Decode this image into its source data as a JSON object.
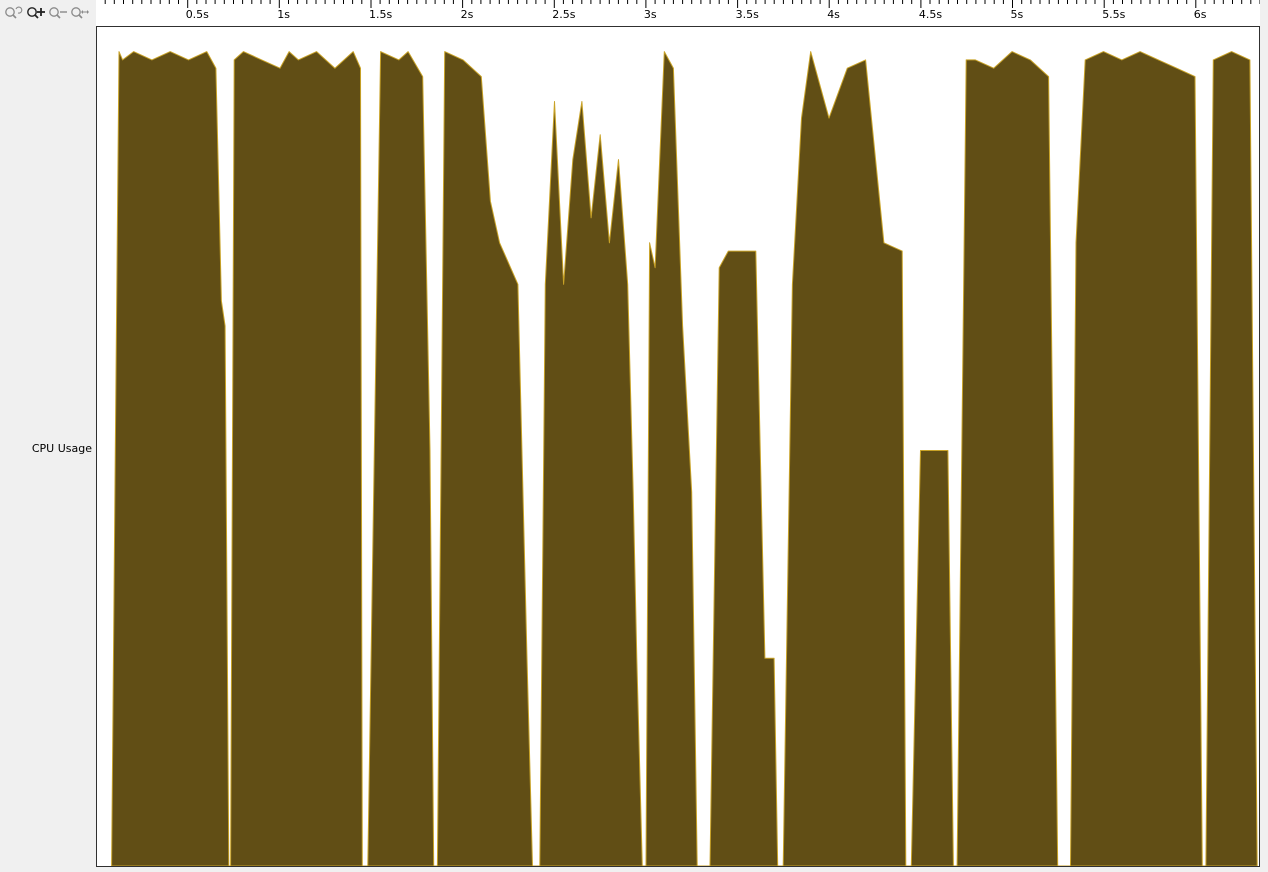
{
  "toolbar": {
    "tools": [
      {
        "name": "zoom-reset-icon"
      },
      {
        "name": "zoom-in-icon"
      },
      {
        "name": "zoom-out-icon"
      },
      {
        "name": "zoom-fit-icon"
      }
    ]
  },
  "row": {
    "label": "CPU Usage"
  },
  "colors": {
    "fill": "#614e15",
    "edge": "#c8a227",
    "background": "#ffffff",
    "chrome": "#f0f0f0"
  },
  "chart_data": {
    "type": "area",
    "title": "",
    "xlabel": "",
    "ylabel": "CPU Usage",
    "xlim": [
      0.0,
      6.35
    ],
    "ylim": [
      0,
      100
    ],
    "x_ticks": [
      0.5,
      1,
      1.5,
      2,
      2.5,
      3,
      3.5,
      4,
      4.5,
      5,
      5.5,
      6
    ],
    "x_tick_labels": [
      "0.5s",
      "1s",
      "1.5s",
      "2s",
      "2.5s",
      "3s",
      "3.5s",
      "4s",
      "4.5s",
      "5s",
      "5.5s",
      "6s"
    ],
    "series": [
      {
        "x": [
          0.08,
          0.1,
          0.12,
          0.14,
          0.2,
          0.3,
          0.4,
          0.5,
          0.6,
          0.65,
          0.68,
          0.7,
          0.72,
          0.73,
          0.75,
          0.8,
          0.9,
          1.0,
          1.05,
          1.1,
          1.2,
          1.3,
          1.4,
          1.44,
          1.45,
          1.48,
          1.55,
          1.65,
          1.7,
          1.78,
          1.82,
          1.84,
          1.86,
          1.9,
          2.0,
          2.1,
          2.15,
          2.2,
          2.3,
          2.35,
          2.38,
          2.4,
          2.42,
          2.45,
          2.5,
          2.55,
          2.6,
          2.65,
          2.7,
          2.75,
          2.8,
          2.85,
          2.9,
          2.93,
          2.95,
          2.98,
          3.0,
          3.02,
          3.05,
          3.1,
          3.15,
          3.2,
          3.25,
          3.28,
          3.3,
          3.33,
          3.35,
          3.4,
          3.45,
          3.5,
          3.6,
          3.65,
          3.7,
          3.72,
          3.75,
          3.8,
          3.85,
          3.9,
          4.0,
          4.1,
          4.2,
          4.3,
          4.4,
          4.42,
          4.45,
          4.5,
          4.55,
          4.6,
          4.65,
          4.68,
          4.7,
          4.75,
          4.8,
          4.9,
          5.0,
          5.1,
          5.2,
          5.25,
          5.28,
          5.32,
          5.35,
          5.4,
          5.5,
          5.6,
          5.7,
          5.8,
          5.9,
          6.0,
          6.04,
          6.06,
          6.1,
          6.2,
          6.3,
          6.34
        ],
        "y": [
          0,
          50,
          98,
          97,
          98,
          97,
          98,
          97,
          98,
          96,
          68,
          65,
          0,
          0,
          97,
          98,
          97,
          96,
          98,
          97,
          98,
          96,
          98,
          96,
          0,
          0,
          98,
          97,
          98,
          95,
          50,
          0,
          0,
          98,
          97,
          95,
          80,
          75,
          70,
          25,
          0,
          0,
          0,
          70,
          92,
          70,
          85,
          92,
          78,
          88,
          75,
          85,
          70,
          45,
          25,
          0,
          0,
          75,
          72,
          98,
          96,
          65,
          45,
          0,
          0,
          0,
          0,
          72,
          74,
          74,
          74,
          25,
          25,
          0,
          0,
          70,
          90,
          98,
          90,
          96,
          97,
          75,
          74,
          0,
          0,
          50,
          50,
          50,
          50,
          0,
          0,
          97,
          97,
          96,
          98,
          97,
          95,
          0,
          0,
          0,
          75,
          97,
          98,
          97,
          98,
          97,
          96,
          95,
          0,
          0,
          97,
          98,
          97,
          0
        ]
      }
    ]
  }
}
